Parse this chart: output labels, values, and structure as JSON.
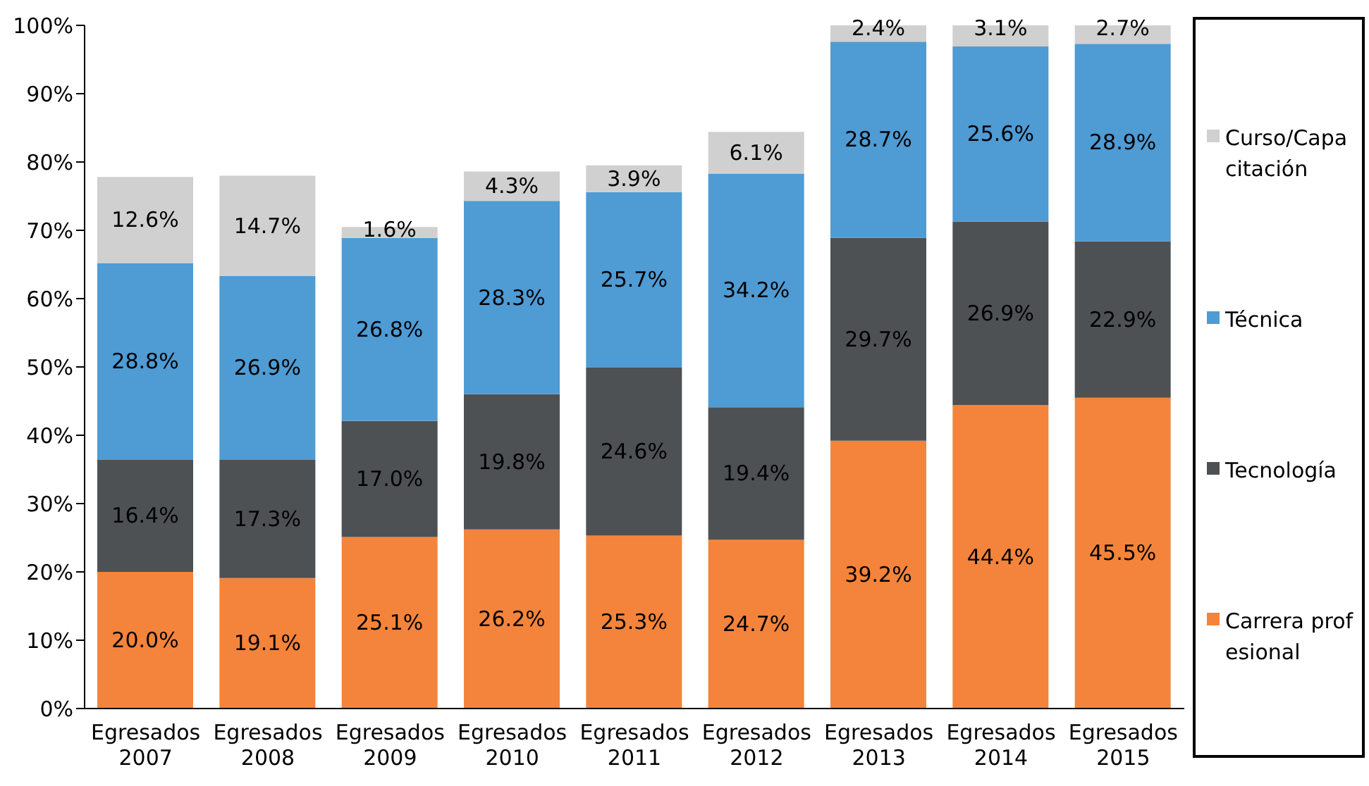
{
  "chart_data": {
    "type": "bar",
    "stacked": true,
    "categories": [
      "Egresados 2007",
      "Egresados 2008",
      "Egresados 2009",
      "Egresados 2010",
      "Egresados 2011",
      "Egresados 2012",
      "Egresados 2013",
      "Egresados 2014",
      "Egresados 2015"
    ],
    "series": [
      {
        "name": "Carrera profesional",
        "color": "#f4843b",
        "values": [
          20.0,
          19.1,
          25.1,
          26.2,
          25.3,
          24.7,
          39.2,
          44.4,
          45.5
        ],
        "value_labels": [
          "20.0%",
          "19.1%",
          "25.1%",
          "26.2%",
          "25.3%",
          "24.7%",
          "39.2%",
          "44.4%",
          "45.5%"
        ]
      },
      {
        "name": "Tecnología",
        "color": "#4d5153",
        "values": [
          16.4,
          17.3,
          17.0,
          19.8,
          24.6,
          19.4,
          29.7,
          26.9,
          22.9
        ],
        "value_labels": [
          "16.4%",
          "17.3%",
          "17.0%",
          "19.8%",
          "24.6%",
          "19.4%",
          "29.7%",
          "26.9%",
          "22.9%"
        ]
      },
      {
        "name": "Técnica",
        "color": "#4f9bd4",
        "values": [
          28.8,
          26.9,
          26.8,
          28.3,
          25.7,
          34.2,
          28.7,
          25.6,
          28.9
        ],
        "value_labels": [
          "28.8%",
          "26.9%",
          "26.8%",
          "28.3%",
          "25.7%",
          "34.2%",
          "28.7%",
          "25.6%",
          "28.9%"
        ]
      },
      {
        "name": "Curso/Capacitación",
        "color": "#d0d0d0",
        "values": [
          12.6,
          14.7,
          1.6,
          4.3,
          3.9,
          6.1,
          2.4,
          3.1,
          2.7
        ],
        "value_labels": [
          "12.6%",
          "14.7%",
          "1.6%",
          "4.3%",
          "3.9%",
          "6.1%",
          "2.4%",
          "3.1%",
          "2.7%"
        ]
      }
    ],
    "ylim": [
      0,
      100
    ],
    "yticks": [
      {
        "value": 0,
        "label": "0%"
      },
      {
        "value": 10,
        "label": "10%"
      },
      {
        "value": 20,
        "label": "20%"
      },
      {
        "value": 30,
        "label": "30%"
      },
      {
        "value": 40,
        "label": "40%"
      },
      {
        "value": 50,
        "label": "50%"
      },
      {
        "value": 60,
        "label": "60%"
      },
      {
        "value": 70,
        "label": "70%"
      },
      {
        "value": 80,
        "label": "80%"
      },
      {
        "value": 90,
        "label": "90%"
      },
      {
        "value": 100,
        "label": "100%"
      }
    ],
    "grid": false,
    "legend": "right"
  }
}
